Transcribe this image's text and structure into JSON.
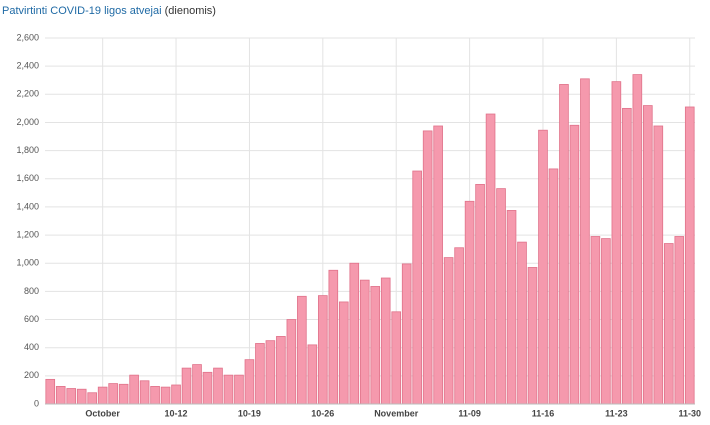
{
  "chart_data": {
    "type": "bar",
    "title": "Patvirtinti COVID-19 ligos atvejai",
    "subtitle": "(dienomis)",
    "categories": [
      null,
      null,
      null,
      null,
      null,
      "October",
      null,
      null,
      null,
      null,
      null,
      null,
      "10-12",
      null,
      null,
      null,
      null,
      null,
      null,
      "10-19",
      null,
      null,
      null,
      null,
      null,
      null,
      "10-26",
      null,
      null,
      null,
      null,
      null,
      null,
      "November",
      null,
      null,
      null,
      null,
      null,
      null,
      "11-09",
      null,
      null,
      null,
      null,
      null,
      null,
      "11-16",
      null,
      null,
      null,
      null,
      null,
      null,
      "11-23",
      null,
      null,
      null,
      null,
      null,
      null,
      "11-30"
    ],
    "values": [
      175,
      125,
      110,
      105,
      80,
      120,
      145,
      140,
      205,
      165,
      125,
      120,
      135,
      255,
      280,
      225,
      255,
      205,
      205,
      315,
      430,
      450,
      480,
      600,
      765,
      420,
      770,
      950,
      725,
      1000,
      880,
      835,
      895,
      655,
      995,
      1655,
      1940,
      1975,
      1040,
      1110,
      1440,
      1560,
      2060,
      1530,
      1375,
      1150,
      970,
      1945,
      1670,
      2270,
      1980,
      2310,
      1190,
      1175,
      2290,
      2100,
      2340,
      2120,
      1975,
      1140,
      1190,
      2110
    ],
    "color": "#f599ad",
    "ylim": [
      0,
      2600
    ],
    "yticks": [
      0,
      200,
      400,
      600,
      800,
      {
        "value": 1000,
        "label": "1,000"
      },
      {
        "value": 1200,
        "label": "1,200"
      },
      {
        "value": 1400,
        "label": "1,400"
      },
      {
        "value": 1600,
        "label": "1,600"
      },
      {
        "value": 1800,
        "label": "1,800"
      },
      {
        "value": 2000,
        "label": "2,000"
      },
      {
        "value": 2200,
        "label": "2,200"
      },
      {
        "value": 2400,
        "label": "2,400"
      },
      {
        "value": 2600,
        "label": "2,600"
      }
    ],
    "grid": true
  }
}
